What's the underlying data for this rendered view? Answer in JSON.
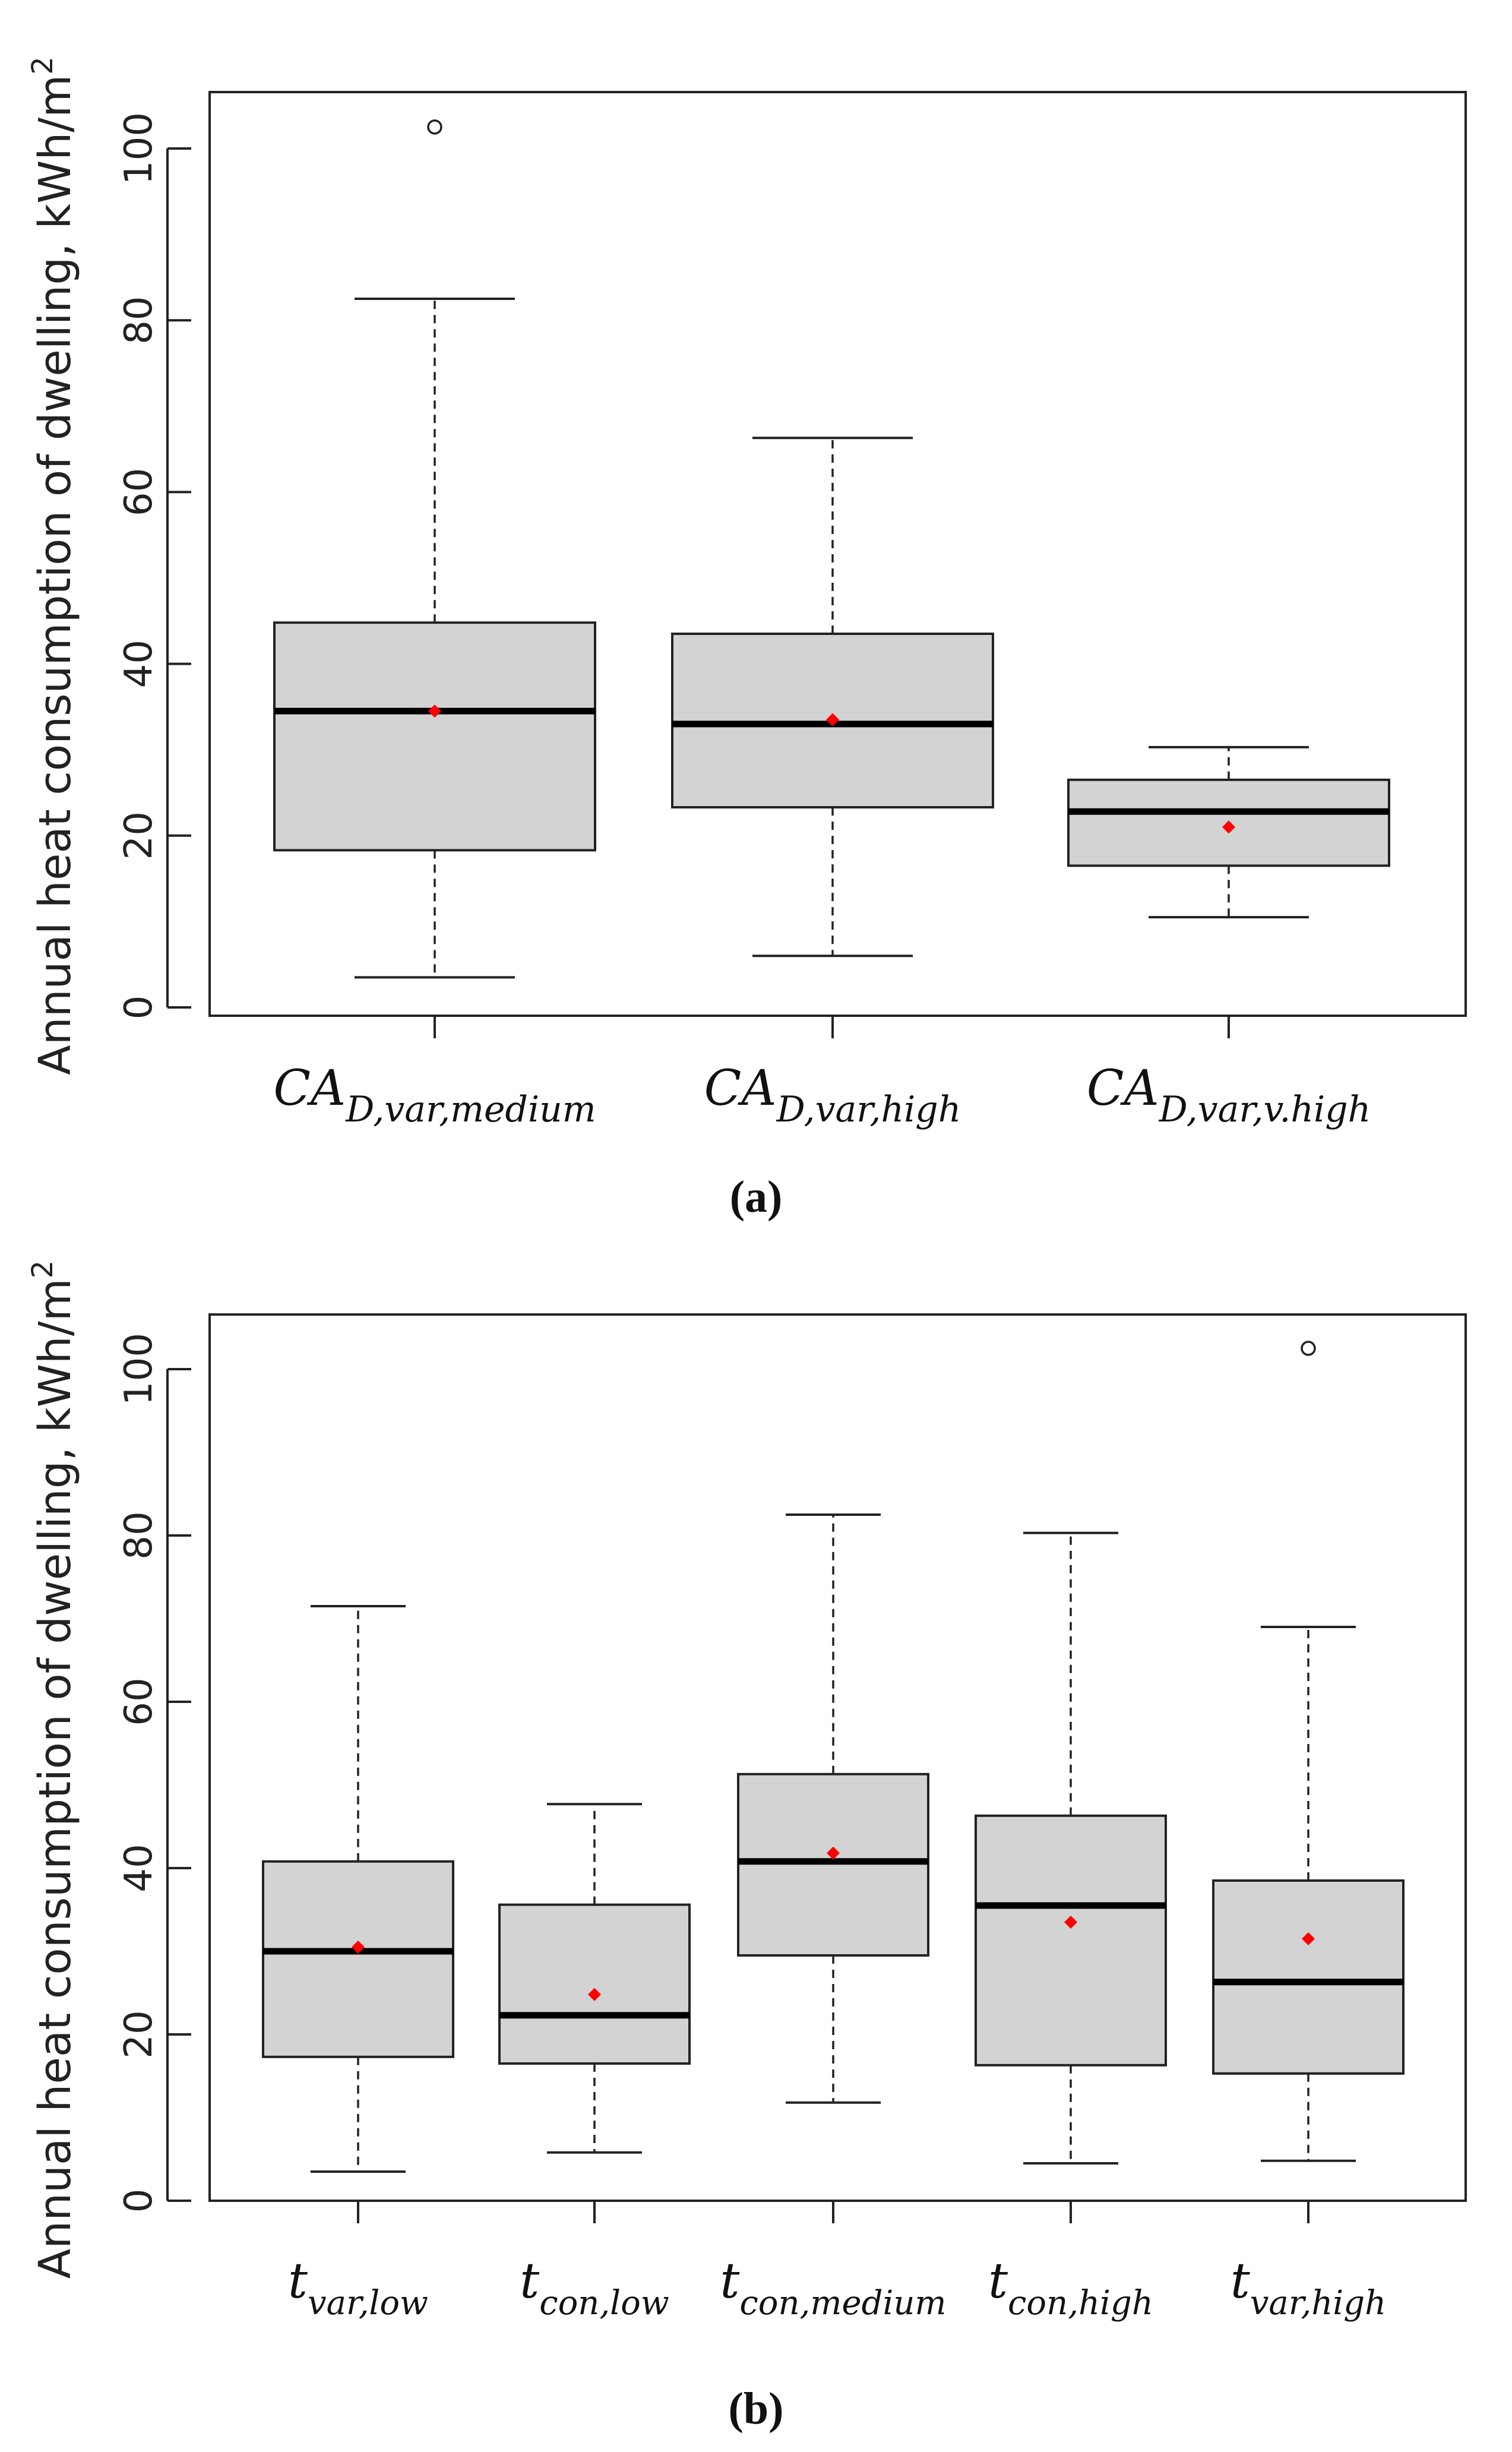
{
  "colors": {
    "box_fill": "#d3d3d3",
    "line": "#000000",
    "mean_marker": "#ff0000",
    "background": "#ffffff"
  },
  "chart_data": [
    {
      "type": "box",
      "panel": "a",
      "caption": "(a)",
      "ylabel": "Annual heat consumption of dwelling, kWh/m",
      "ylabel_sup": "2",
      "ylim": [
        0,
        106
      ],
      "yticks": [
        0,
        20,
        40,
        60,
        80,
        100
      ],
      "grid": false,
      "categories": [
        {
          "main": "CA",
          "sub": "D,var,medium"
        },
        {
          "main": "CA",
          "sub": "D,var,high"
        },
        {
          "main": "CA",
          "sub": "D,var,v.high"
        }
      ],
      "boxes": [
        {
          "whisker_low": 3.5,
          "q1": 18.3,
          "median": 34.5,
          "q3": 44.8,
          "whisker_high": 82.5,
          "mean": 34.5,
          "outliers": [
            102.5
          ]
        },
        {
          "whisker_low": 6.0,
          "q1": 23.3,
          "median": 33.0,
          "q3": 43.5,
          "whisker_high": 66.3,
          "mean": 33.5,
          "outliers": []
        },
        {
          "whisker_low": 10.5,
          "q1": 16.5,
          "median": 22.8,
          "q3": 26.5,
          "whisker_high": 30.3,
          "mean": 21.0,
          "outliers": []
        }
      ]
    },
    {
      "type": "box",
      "panel": "b",
      "caption": "(b)",
      "ylabel": "Annual heat consumption of dwelling, kWh/m",
      "ylabel_sup": "2",
      "ylim": [
        0,
        106
      ],
      "yticks": [
        0,
        20,
        40,
        60,
        80,
        100
      ],
      "grid": false,
      "categories": [
        {
          "main": "t",
          "sub": "var,low"
        },
        {
          "main": "t",
          "sub": "con,low"
        },
        {
          "main": "t",
          "sub": "con,medium"
        },
        {
          "main": "t",
          "sub": "con,high"
        },
        {
          "main": "t",
          "sub": "var,high"
        }
      ],
      "boxes": [
        {
          "whisker_low": 3.5,
          "q1": 17.3,
          "median": 30.0,
          "q3": 40.8,
          "whisker_high": 71.5,
          "mean": 30.5,
          "outliers": []
        },
        {
          "whisker_low": 5.8,
          "q1": 16.5,
          "median": 22.3,
          "q3": 35.6,
          "whisker_high": 47.7,
          "mean": 24.8,
          "outliers": []
        },
        {
          "whisker_low": 11.8,
          "q1": 29.5,
          "median": 40.8,
          "q3": 51.3,
          "whisker_high": 82.5,
          "mean": 41.8,
          "outliers": []
        },
        {
          "whisker_low": 4.5,
          "q1": 16.3,
          "median": 35.5,
          "q3": 46.3,
          "whisker_high": 80.3,
          "mean": 33.5,
          "outliers": []
        },
        {
          "whisker_low": 4.8,
          "q1": 15.3,
          "median": 26.3,
          "q3": 38.5,
          "whisker_high": 69.0,
          "mean": 31.5,
          "outliers": [
            102.5
          ]
        }
      ]
    }
  ]
}
